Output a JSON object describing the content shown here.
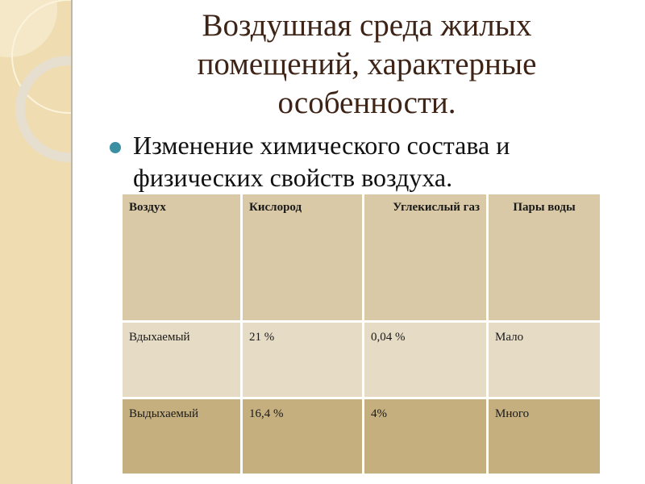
{
  "slide": {
    "title": "Воздушная среда жилых помещений, характерные особенности.",
    "bullet": "Изменение химического состава  и физических свойств воздуха.",
    "colors": {
      "title": "#3d2416",
      "bullet": "#3a8fa3",
      "header_row": "#d9c9a6",
      "row1": "#e6dcc6",
      "row2": "#c6af7e"
    },
    "table": {
      "headers": [
        "Воздух",
        "Кислород",
        "Углекислый газ",
        "Пары воды"
      ],
      "rows": [
        [
          "Вдыхаемый",
          "21 %",
          "0,04 %",
          "Мало"
        ],
        [
          "Выдыхаемый",
          "16,4 %",
          "4%",
          "Много"
        ]
      ]
    }
  }
}
